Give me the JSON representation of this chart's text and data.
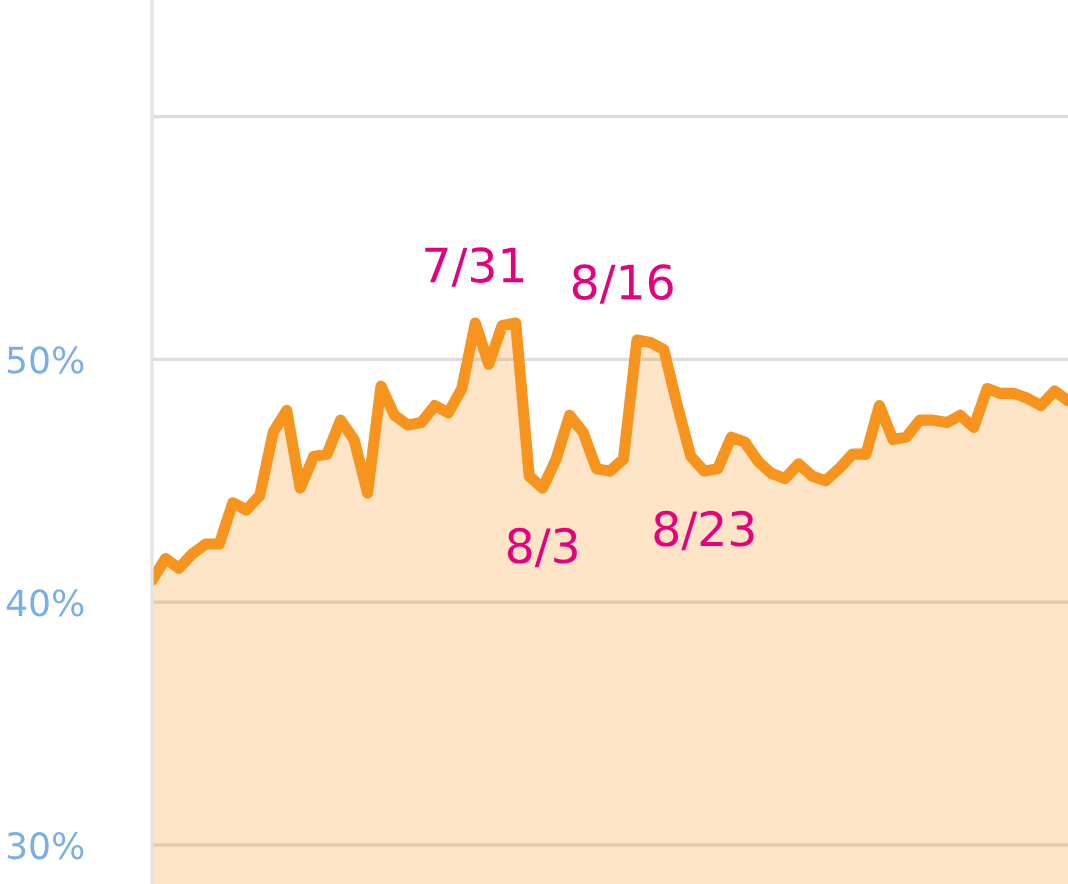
{
  "chart_data": {
    "type": "area",
    "categories": [
      null,
      null,
      null,
      null,
      null,
      null,
      null,
      null,
      null,
      null,
      null,
      null,
      null,
      null,
      null,
      null,
      null,
      null,
      null,
      null,
      null,
      null,
      null,
      null,
      null,
      null,
      null,
      null,
      null,
      null,
      null,
      null,
      null,
      null,
      null,
      null,
      null,
      null,
      null,
      null,
      null,
      null,
      null,
      null,
      null,
      null,
      null,
      null,
      null,
      null,
      null,
      null,
      null,
      null,
      null,
      null,
      null,
      null,
      null,
      null,
      null,
      null,
      null,
      null,
      null,
      null,
      null,
      null,
      null
    ],
    "series": [
      {
        "color": "#f7941d",
        "values": [
          40.9,
          41.8,
          41.4,
          42.0,
          42.4,
          42.4,
          44.1,
          43.8,
          44.4,
          47.0,
          47.9,
          44.7,
          46.0,
          46.1,
          47.5,
          46.7,
          44.5,
          48.9,
          47.7,
          47.3,
          47.4,
          48.1,
          47.8,
          48.8,
          51.5,
          49.8,
          51.4,
          51.5,
          45.2,
          44.7,
          45.9,
          47.7,
          47.0,
          45.5,
          45.4,
          45.9,
          50.8,
          50.7,
          50.4,
          48.1,
          46.0,
          45.4,
          45.5,
          46.8,
          46.6,
          45.8,
          45.3,
          45.1,
          45.7,
          45.2,
          45.0,
          45.5,
          46.1,
          46.1,
          48.1,
          46.7,
          46.8,
          47.5,
          47.5,
          47.4,
          47.7,
          47.2,
          48.8,
          48.6,
          48.6,
          48.4,
          48.1,
          48.7,
          48.3
        ]
      }
    ],
    "ylim": [
      28.4,
      64.8
    ],
    "yticks": [
      {
        "value": 30,
        "label": "30%"
      },
      {
        "value": 40,
        "label": "40%"
      },
      {
        "value": 50,
        "label": "50%"
      },
      {
        "value": 60,
        "label": null
      }
    ],
    "tick_labels": "y",
    "grid": "y",
    "annotations": [
      {
        "text": "7/31",
        "y": 51.4
      },
      {
        "text": "8/3",
        "y": 44.7
      },
      {
        "text": "8/16",
        "y": 50.7
      },
      {
        "text": "8/23",
        "y": 45.4
      }
    ]
  }
}
